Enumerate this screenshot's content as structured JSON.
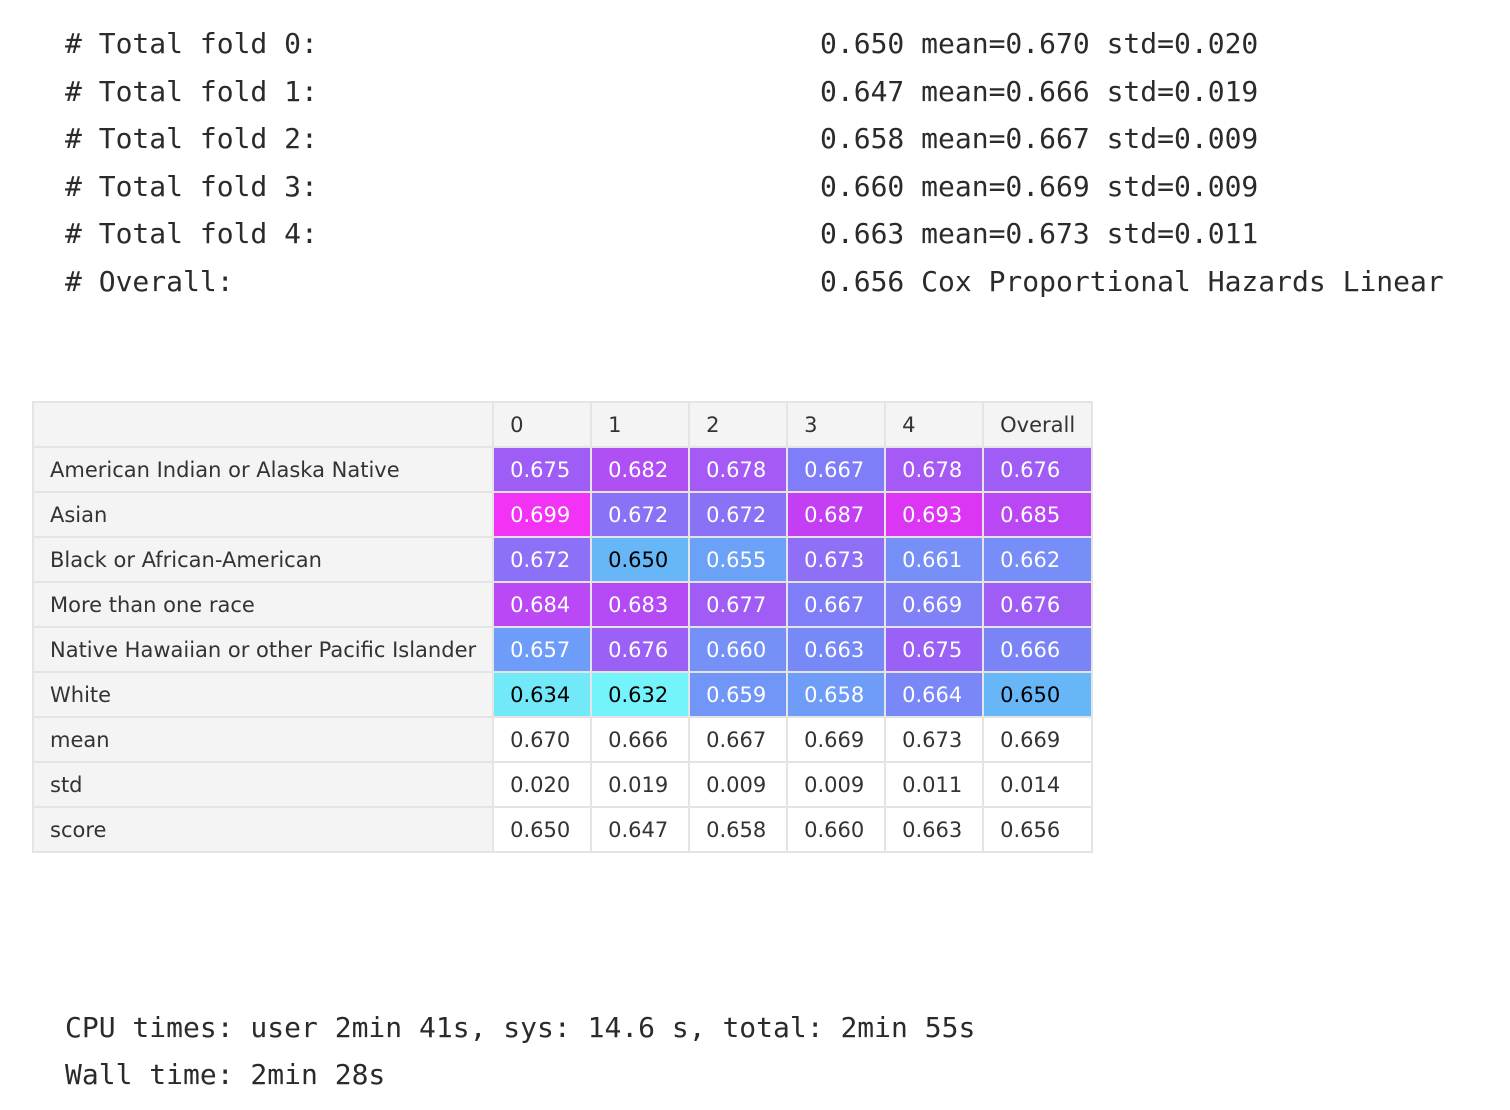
{
  "stdout": [
    {
      "label": "# Total fold 0:",
      "value": "0.650 mean=0.670 std=0.020"
    },
    {
      "label": "# Total fold 1:",
      "value": "0.647 mean=0.666 std=0.019"
    },
    {
      "label": "# Total fold 2:",
      "value": "0.658 mean=0.667 std=0.009"
    },
    {
      "label": "# Total fold 3:",
      "value": "0.660 mean=0.669 std=0.009"
    },
    {
      "label": "# Total fold 4:",
      "value": "0.663 mean=0.673 std=0.011"
    },
    {
      "label": "# Overall:",
      "value": "0.656 Cox Proportional Hazards Linear"
    }
  ],
  "table": {
    "columns": [
      "0",
      "1",
      "2",
      "3",
      "4",
      "Overall"
    ],
    "rows": [
      {
        "label": "American Indian or Alaska Native",
        "cells": [
          "0.675",
          "0.682",
          "0.678",
          "0.667",
          "0.678",
          "0.676"
        ],
        "colors": [
          "#9e5ef6",
          "#b050f4",
          "#a55af5",
          "#7f7df7",
          "#a55af5",
          "#9f5df6"
        ],
        "dark": [
          false,
          false,
          false,
          false,
          false,
          false
        ]
      },
      {
        "label": "Asian",
        "cells": [
          "0.699",
          "0.672",
          "0.672",
          "0.687",
          "0.693",
          "0.685"
        ],
        "colors": [
          "#f232f5",
          "#8a72f7",
          "#8a72f7",
          "#c43ef4",
          "#dc36f4",
          "#ba47f4"
        ],
        "dark": [
          false,
          false,
          false,
          false,
          false,
          false
        ]
      },
      {
        "label": "Black or African-American",
        "cells": [
          "0.672",
          "0.650",
          "0.655",
          "0.673",
          "0.661",
          "0.662"
        ],
        "colors": [
          "#8c70f7",
          "#66b6f8",
          "#6ba2f8",
          "#8e6ff6",
          "#7690f7",
          "#778df7"
        ],
        "dark": [
          false,
          true,
          false,
          false,
          false,
          false
        ]
      },
      {
        "label": "More than one race",
        "cells": [
          "0.684",
          "0.683",
          "0.677",
          "0.667",
          "0.669",
          "0.676"
        ],
        "colors": [
          "#ba48f4",
          "#b44af4",
          "#a15cf5",
          "#7f7df7",
          "#8080f7",
          "#9f5df6"
        ],
        "dark": [
          false,
          false,
          false,
          false,
          false,
          false
        ]
      },
      {
        "label": "Native Hawaiian or other Pacific Islander",
        "cells": [
          "0.657",
          "0.676",
          "0.660",
          "0.663",
          "0.675",
          "0.666"
        ],
        "colors": [
          "#6d9df8",
          "#9b60f5",
          "#7590f7",
          "#7788f7",
          "#9a61f6",
          "#7b84f7"
        ],
        "dark": [
          false,
          false,
          false,
          false,
          false,
          false
        ]
      },
      {
        "label": "White",
        "cells": [
          "0.634",
          "0.632",
          "0.659",
          "0.658",
          "0.664",
          "0.650"
        ],
        "colors": [
          "#72e9f9",
          "#74f3fa",
          "#7196f8",
          "#6e9cf7",
          "#7a87f7",
          "#66b6f8"
        ],
        "dark": [
          true,
          true,
          false,
          false,
          false,
          true
        ]
      },
      {
        "label": "mean",
        "cells": [
          "0.670",
          "0.666",
          "0.667",
          "0.669",
          "0.673",
          "0.669"
        ],
        "colors": [
          "#ffffff",
          "#ffffff",
          "#ffffff",
          "#ffffff",
          "#ffffff",
          "#ffffff"
        ],
        "dark": [
          true,
          true,
          true,
          true,
          true,
          true
        ]
      },
      {
        "label": "std",
        "cells": [
          "0.020",
          "0.019",
          "0.009",
          "0.009",
          "0.011",
          "0.014"
        ],
        "colors": [
          "#ffffff",
          "#ffffff",
          "#ffffff",
          "#ffffff",
          "#ffffff",
          "#ffffff"
        ],
        "dark": [
          true,
          true,
          true,
          true,
          true,
          true
        ]
      },
      {
        "label": "score",
        "cells": [
          "0.650",
          "0.647",
          "0.658",
          "0.660",
          "0.663",
          "0.656"
        ],
        "colors": [
          "#ffffff",
          "#ffffff",
          "#ffffff",
          "#ffffff",
          "#ffffff",
          "#ffffff"
        ],
        "dark": [
          true,
          true,
          true,
          true,
          true,
          true
        ]
      }
    ]
  },
  "timing": [
    "CPU times: user 2min 41s, sys: 14.6 s, total: 2min 55s",
    "Wall time: 2min 28s"
  ]
}
